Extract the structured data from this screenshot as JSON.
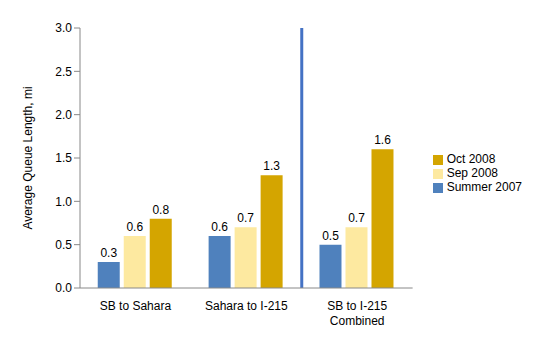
{
  "chart_data": {
    "type": "bar",
    "ylabel": "Average Queue Length, mi",
    "categories": [
      "SB to Sahara",
      "Sahara to I-215",
      "SB to I-215 Combined"
    ],
    "series": [
      {
        "name": "Summer 2007",
        "color": "#4f81bd",
        "values": [
          0.3,
          0.6,
          0.5
        ]
      },
      {
        "name": "Sep 2008",
        "color": "#fde9a0",
        "values": [
          0.6,
          0.7,
          0.7
        ]
      },
      {
        "name": "Oct 2008",
        "color": "#d4a500",
        "values": [
          0.8,
          1.3,
          1.6
        ]
      }
    ],
    "ylim": [
      0,
      3
    ],
    "yticks": [
      {
        "value": 0,
        "label": "0.0"
      },
      0.5,
      {
        "value": 1,
        "label": "1.0"
      },
      1.5,
      {
        "value": 2,
        "label": "2.0"
      },
      2.5,
      {
        "value": 3,
        "label": "3.0"
      }
    ],
    "data_labels": true,
    "legend": "right",
    "grid": false
  }
}
